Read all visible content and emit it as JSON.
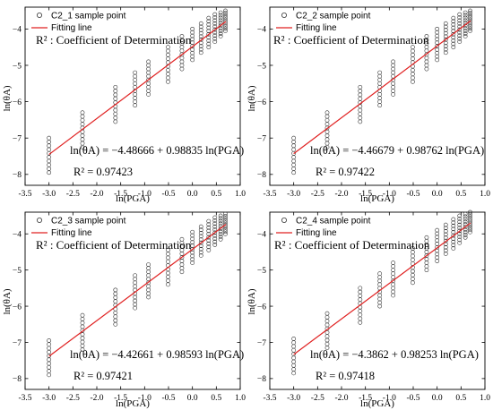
{
  "figure": {
    "panels": [
      {
        "legend_point": "C2_1 sample point",
        "legend_line": "Fitting line",
        "r2_note": "R² : Coefficient of Determination",
        "equation": "ln(θA) = −4.48666 + 0.98835 ln(PGA)",
        "r2_text": "R² = 0.97423",
        "xlabel": "ln(PGA)",
        "ylabel": "ln(θA)"
      },
      {
        "legend_point": "C2_2 sample point",
        "legend_line": "Fitting line",
        "r2_note": "R² : Coefficient of Determination",
        "equation": "ln(θA) = −4.46679 + 0.98762 ln(PGA)",
        "r2_text": "R² = 0.97422",
        "xlabel": "ln(PGA)",
        "ylabel": "ln(θA)"
      },
      {
        "legend_point": "C2_3 sample point",
        "legend_line": "Fitting line",
        "r2_note": "R² : Coefficient of Determination",
        "equation": "ln(θA) = −4.42661 + 0.98593 ln(PGA)",
        "r2_text": "R² = 0.97421",
        "xlabel": "ln(PGA)",
        "ylabel": "ln(θA)"
      },
      {
        "legend_point": "C2_4 sample point",
        "legend_line": "Fitting line",
        "r2_note": "R² : Coefficient of Determination",
        "equation": "ln(θA) = −4.3862 + 0.98253 ln(PGA)",
        "r2_text": "R² = 0.97418",
        "xlabel": "ln(PGA)",
        "ylabel": "ln(θA)"
      }
    ]
  },
  "colors": {
    "fit_line": "#e02020",
    "marker_stroke": "#333333",
    "axis": "#000000"
  },
  "chart_data": [
    {
      "type": "scatter",
      "xlabel": "ln(PGA)",
      "ylabel": "ln(θA)",
      "xlim": [
        -3.5,
        1.0
      ],
      "ylim": [
        -8.3,
        -3.4
      ],
      "xticks": [
        -3.5,
        -3.0,
        -2.5,
        -2.0,
        -1.5,
        -1.0,
        -0.5,
        0.0,
        0.5,
        1.0
      ],
      "yticks": [
        -8,
        -7,
        -6,
        -5,
        -4
      ],
      "legend_position": "top-left",
      "series": [
        {
          "name": "C2_1 sample point",
          "kind": "markers",
          "x": [
            -3.0,
            -2.3,
            -1.61,
            -1.2,
            -0.92,
            -0.51,
            -0.22,
            0.0,
            0.18,
            0.34,
            0.47,
            0.59,
            0.69
          ],
          "spread_at_x": [
            [
              -7.95,
              -7.0
            ],
            [
              -7.25,
              -6.3
            ],
            [
              -6.55,
              -5.6
            ],
            [
              -6.1,
              -5.2
            ],
            [
              -5.8,
              -4.9
            ],
            [
              -5.45,
              -4.5
            ],
            [
              -5.1,
              -4.2
            ],
            [
              -4.85,
              -4.0
            ],
            [
              -4.65,
              -3.85
            ],
            [
              -4.5,
              -3.7
            ],
            [
              -4.35,
              -3.6
            ],
            [
              -4.2,
              -3.55
            ],
            [
              -4.05,
              -3.5
            ]
          ]
        },
        {
          "name": "Fitting line",
          "kind": "line",
          "intercept": -4.48666,
          "slope": 0.98835,
          "x": [
            -3.0,
            0.7
          ]
        }
      ]
    },
    {
      "type": "scatter",
      "xlabel": "ln(PGA)",
      "ylabel": "ln(θA)",
      "xlim": [
        -3.5,
        1.0
      ],
      "ylim": [
        -8.3,
        -3.4
      ],
      "xticks": [
        -3.5,
        -3.0,
        -2.5,
        -2.0,
        -1.5,
        -1.0,
        -0.5,
        0.0,
        0.5,
        1.0
      ],
      "yticks": [
        -8,
        -7,
        -6,
        -5,
        -4
      ],
      "legend_position": "top-left",
      "series": [
        {
          "name": "C2_2 sample point",
          "kind": "markers",
          "x": [
            -3.0,
            -2.3,
            -1.61,
            -1.2,
            -0.92,
            -0.51,
            -0.22,
            0.0,
            0.18,
            0.34,
            0.47,
            0.59,
            0.69
          ],
          "spread_at_x": [
            [
              -7.95,
              -7.0
            ],
            [
              -7.25,
              -6.3
            ],
            [
              -6.55,
              -5.6
            ],
            [
              -6.1,
              -5.2
            ],
            [
              -5.8,
              -4.9
            ],
            [
              -5.45,
              -4.5
            ],
            [
              -5.1,
              -4.2
            ],
            [
              -4.85,
              -4.0
            ],
            [
              -4.65,
              -3.85
            ],
            [
              -4.5,
              -3.7
            ],
            [
              -4.35,
              -3.6
            ],
            [
              -4.2,
              -3.55
            ],
            [
              -4.05,
              -3.5
            ]
          ]
        },
        {
          "name": "Fitting line",
          "kind": "line",
          "intercept": -4.46679,
          "slope": 0.98762,
          "x": [
            -3.0,
            0.7
          ]
        }
      ]
    },
    {
      "type": "scatter",
      "xlabel": "ln(PGA)",
      "ylabel": "ln(θA)",
      "xlim": [
        -3.5,
        1.0
      ],
      "ylim": [
        -8.3,
        -3.4
      ],
      "xticks": [
        -3.5,
        -3.0,
        -2.5,
        -2.0,
        -1.5,
        -1.0,
        -0.5,
        0.0,
        0.5,
        1.0
      ],
      "yticks": [
        -8,
        -7,
        -6,
        -5,
        -4
      ],
      "legend_position": "top-left",
      "series": [
        {
          "name": "C2_3 sample point",
          "kind": "markers",
          "x": [
            -3.0,
            -2.3,
            -1.61,
            -1.2,
            -0.92,
            -0.51,
            -0.22,
            0.0,
            0.18,
            0.34,
            0.47,
            0.59,
            0.69
          ],
          "spread_at_x": [
            [
              -7.9,
              -6.95
            ],
            [
              -7.2,
              -6.25
            ],
            [
              -6.5,
              -5.55
            ],
            [
              -6.05,
              -5.15
            ],
            [
              -5.75,
              -4.85
            ],
            [
              -5.4,
              -4.45
            ],
            [
              -5.05,
              -4.15
            ],
            [
              -4.8,
              -3.95
            ],
            [
              -4.6,
              -3.8
            ],
            [
              -4.45,
              -3.65
            ],
            [
              -4.3,
              -3.55
            ],
            [
              -4.15,
              -3.5
            ],
            [
              -4.0,
              -3.45
            ]
          ]
        },
        {
          "name": "Fitting line",
          "kind": "line",
          "intercept": -4.42661,
          "slope": 0.98593,
          "x": [
            -3.0,
            0.7
          ]
        }
      ]
    },
    {
      "type": "scatter",
      "xlabel": "ln(PGA)",
      "ylabel": "ln(θA)",
      "xlim": [
        -3.5,
        1.0
      ],
      "ylim": [
        -8.3,
        -3.4
      ],
      "xticks": [
        -3.5,
        -3.0,
        -2.5,
        -2.0,
        -1.5,
        -1.0,
        -0.5,
        0.0,
        0.5,
        1.0
      ],
      "yticks": [
        -8,
        -7,
        -6,
        -5,
        -4
      ],
      "legend_position": "top-left",
      "series": [
        {
          "name": "C2_4 sample point",
          "kind": "markers",
          "x": [
            -3.0,
            -2.3,
            -1.61,
            -1.2,
            -0.92,
            -0.51,
            -0.22,
            0.0,
            0.18,
            0.34,
            0.47,
            0.59,
            0.69
          ],
          "spread_at_x": [
            [
              -7.85,
              -6.9
            ],
            [
              -7.15,
              -6.2
            ],
            [
              -6.45,
              -5.5
            ],
            [
              -6.0,
              -5.1
            ],
            [
              -5.7,
              -4.8
            ],
            [
              -5.35,
              -4.4
            ],
            [
              -5.0,
              -4.1
            ],
            [
              -4.75,
              -3.9
            ],
            [
              -4.55,
              -3.75
            ],
            [
              -4.4,
              -3.6
            ],
            [
              -4.25,
              -3.5
            ],
            [
              -4.1,
              -3.45
            ],
            [
              -3.95,
              -3.4
            ]
          ]
        },
        {
          "name": "Fitting line",
          "kind": "line",
          "intercept": -4.3862,
          "slope": 0.98253,
          "x": [
            -3.0,
            0.7
          ]
        }
      ]
    }
  ]
}
